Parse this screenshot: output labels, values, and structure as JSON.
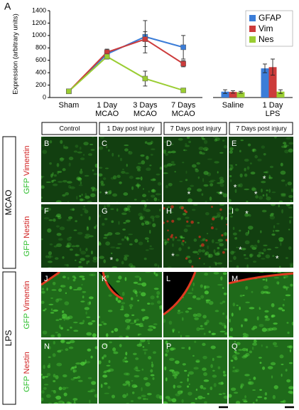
{
  "figure_label": "A",
  "chart_data": [
    {
      "type": "line",
      "y_label": "Expression (arbitrary units)",
      "categories": [
        [
          "Sham"
        ],
        [
          "1 Day",
          "MCAO"
        ],
        [
          "3 Days",
          "MCAO"
        ],
        [
          "7 Days",
          "MCAO"
        ]
      ],
      "ylim": [
        0,
        1400
      ],
      "yticks": [
        0,
        200,
        400,
        600,
        800,
        1000,
        1200,
        1400
      ],
      "series": [
        {
          "color": "#3b7dd8",
          "values": [
            100,
            700,
            980,
            810
          ],
          "errors": [
            20,
            50,
            260,
            190
          ]
        },
        {
          "color": "#cc3b3b",
          "values": [
            100,
            730,
            940,
            545
          ],
          "errors": [
            20,
            50,
            120,
            50
          ]
        },
        {
          "color": "#9acd32",
          "values": [
            100,
            660,
            305,
            115
          ],
          "errors": [
            15,
            40,
            120,
            10
          ]
        }
      ]
    },
    {
      "type": "bar",
      "categories": [
        [
          "Saline"
        ],
        [
          "1 Day",
          "LPS"
        ]
      ],
      "ylim": [
        0,
        1400
      ],
      "legend": "upper right",
      "series": [
        {
          "name": "GFAP",
          "color": "#3b7dd8",
          "values": [
            95,
            470
          ],
          "errors": [
            30,
            70
          ]
        },
        {
          "name": "Vim",
          "color": "#cc3b3b",
          "values": [
            90,
            490
          ],
          "errors": [
            20,
            130
          ]
        },
        {
          "name": "Nes",
          "color": "#9acd32",
          "values": [
            85,
            95
          ],
          "errors": [
            15,
            30
          ]
        }
      ]
    }
  ],
  "panel_grid": {
    "columns": [
      "Control",
      "1 Day post injury",
      "7 Days post injury",
      "7 Days post injury"
    ],
    "groups": [
      {
        "label": "MCAO",
        "rows": [
          {
            "stain": {
              "green": "GFP",
              "red": "Vimentin"
            },
            "panels": [
              {
                "label": "B",
                "stars": []
              },
              {
                "label": "C",
                "stars": [
                  "*"
                ]
              },
              {
                "label": "D",
                "stars": [
                  "*",
                  "*"
                ]
              },
              {
                "label": "E",
                "stars": [
                  "*",
                  "*",
                  "*"
                ]
              }
            ]
          },
          {
            "stain": {
              "green": "GFP",
              "red": "Nestin"
            },
            "panels": [
              {
                "label": "F",
                "stars": []
              },
              {
                "label": "G",
                "stars": [
                  "*"
                ]
              },
              {
                "label": "H",
                "stars": [
                  "*"
                ]
              },
              {
                "label": "I",
                "stars": [
                  "*",
                  "*",
                  "*"
                ]
              }
            ]
          }
        ]
      },
      {
        "label": "LPS",
        "rows": [
          {
            "stain": {
              "green": "GFP",
              "red": "Vimentin"
            },
            "panels": [
              {
                "label": "J",
                "stars": []
              },
              {
                "label": "K",
                "stars": []
              },
              {
                "label": "L",
                "stars": []
              },
              {
                "label": "M",
                "stars": []
              }
            ]
          },
          {
            "stain": {
              "green": "GFP",
              "red": "Nestin"
            },
            "panels": [
              {
                "label": "N",
                "stars": []
              },
              {
                "label": "O",
                "stars": []
              },
              {
                "label": "P",
                "stars": []
              },
              {
                "label": "Q",
                "stars": []
              }
            ]
          }
        ]
      }
    ]
  }
}
